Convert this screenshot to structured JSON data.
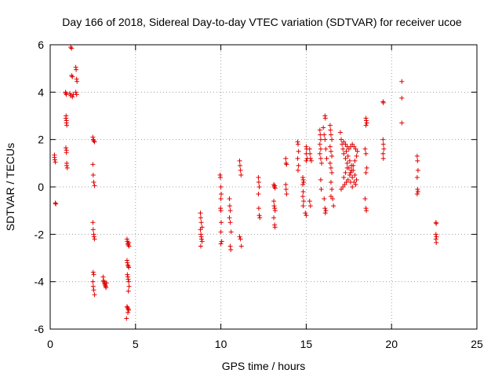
{
  "chart_data": {
    "type": "scatter",
    "title": "Day 166 of 2018, Sidereal Day-to-day VTEC variation (SDTVAR) for receiver ucoe",
    "xlabel": "GPS time / hours",
    "ylabel": "SDTVAR / TECUs",
    "xlim": [
      0,
      25
    ],
    "ylim": [
      -6,
      6
    ],
    "xticks": [
      "0",
      "5",
      "10",
      "15",
      "20",
      "25"
    ],
    "yticks": [
      "-6",
      "-4",
      "-2",
      "0",
      "2",
      "4",
      "6"
    ],
    "grid": true,
    "marker": "+",
    "color": "#e00000",
    "series": [
      {
        "name": "SDTVAR",
        "points": [
          [
            0.25,
            1.35
          ],
          [
            0.25,
            1.25
          ],
          [
            0.27,
            1.15
          ],
          [
            0.3,
            1.05
          ],
          [
            0.3,
            -0.68
          ],
          [
            0.33,
            -0.72
          ],
          [
            0.9,
            4.0
          ],
          [
            0.92,
            3.95
          ],
          [
            0.95,
            3.9
          ],
          [
            0.93,
            3.0
          ],
          [
            0.92,
            2.9
          ],
          [
            0.95,
            2.8
          ],
          [
            0.95,
            2.7
          ],
          [
            0.97,
            2.6
          ],
          [
            0.92,
            1.65
          ],
          [
            0.95,
            1.55
          ],
          [
            0.95,
            1.45
          ],
          [
            0.97,
            1.0
          ],
          [
            0.97,
            0.9
          ],
          [
            1.0,
            0.8
          ],
          [
            1.2,
            5.9
          ],
          [
            1.25,
            5.85
          ],
          [
            1.25,
            4.7
          ],
          [
            1.3,
            4.65
          ],
          [
            1.15,
            3.95
          ],
          [
            1.2,
            3.85
          ],
          [
            1.3,
            3.8
          ],
          [
            1.35,
            3.9
          ],
          [
            1.5,
            5.05
          ],
          [
            1.52,
            4.95
          ],
          [
            1.55,
            4.55
          ],
          [
            1.57,
            4.45
          ],
          [
            1.5,
            4.0
          ],
          [
            1.55,
            3.9
          ],
          [
            2.5,
            2.1
          ],
          [
            2.52,
            2.0
          ],
          [
            2.55,
            1.95
          ],
          [
            2.6,
            1.9
          ],
          [
            2.5,
            0.95
          ],
          [
            2.52,
            0.5
          ],
          [
            2.55,
            0.2
          ],
          [
            2.6,
            0.05
          ],
          [
            2.5,
            -1.5
          ],
          [
            2.52,
            -1.8
          ],
          [
            2.55,
            -2.0
          ],
          [
            2.57,
            -2.1
          ],
          [
            2.6,
            -2.2
          ],
          [
            2.52,
            -3.6
          ],
          [
            2.55,
            -3.7
          ],
          [
            2.5,
            -4.0
          ],
          [
            2.52,
            -4.2
          ],
          [
            2.55,
            -4.35
          ],
          [
            2.6,
            -4.55
          ],
          [
            3.1,
            -3.8
          ],
          [
            3.12,
            -3.95
          ],
          [
            3.15,
            -4.0
          ],
          [
            3.18,
            -4.05
          ],
          [
            3.2,
            -4.1
          ],
          [
            3.22,
            -4.15
          ],
          [
            3.25,
            -4.2
          ],
          [
            3.27,
            -4.25
          ],
          [
            3.3,
            -4.05
          ],
          [
            4.5,
            -2.2
          ],
          [
            4.52,
            -2.3
          ],
          [
            4.55,
            -2.4
          ],
          [
            4.57,
            -2.45
          ],
          [
            4.6,
            -2.35
          ],
          [
            4.62,
            -2.5
          ],
          [
            4.5,
            -3.1
          ],
          [
            4.52,
            -3.2
          ],
          [
            4.55,
            -3.3
          ],
          [
            4.58,
            -3.35
          ],
          [
            4.6,
            -3.4
          ],
          [
            4.52,
            -3.7
          ],
          [
            4.55,
            -3.8
          ],
          [
            4.57,
            -3.9
          ],
          [
            4.6,
            -4.0
          ],
          [
            4.62,
            -4.2
          ],
          [
            4.58,
            -4.4
          ],
          [
            4.5,
            -5.05
          ],
          [
            4.53,
            -5.1
          ],
          [
            4.57,
            -5.15
          ],
          [
            4.6,
            -5.2
          ],
          [
            4.55,
            -5.3
          ],
          [
            4.47,
            -5.55
          ],
          [
            8.8,
            -1.1
          ],
          [
            8.82,
            -1.3
          ],
          [
            8.85,
            -1.5
          ],
          [
            8.8,
            -1.8
          ],
          [
            8.83,
            -2.0
          ],
          [
            8.85,
            -2.1
          ],
          [
            8.87,
            -2.2
          ],
          [
            8.9,
            -2.3
          ],
          [
            8.82,
            -2.5
          ],
          [
            8.9,
            -1.7
          ],
          [
            9.95,
            0.5
          ],
          [
            9.97,
            0.4
          ],
          [
            10.0,
            0.0
          ],
          [
            10.02,
            -0.3
          ],
          [
            10.0,
            -0.5
          ],
          [
            9.98,
            -0.9
          ],
          [
            10.0,
            -1.0
          ],
          [
            10.02,
            -1.5
          ],
          [
            10.0,
            -1.9
          ],
          [
            10.05,
            -2.3
          ],
          [
            10.0,
            -2.4
          ],
          [
            10.5,
            -0.5
          ],
          [
            10.52,
            -0.8
          ],
          [
            10.55,
            -1.0
          ],
          [
            10.5,
            -1.3
          ],
          [
            10.55,
            -1.5
          ],
          [
            10.6,
            -1.9
          ],
          [
            10.55,
            -2.5
          ],
          [
            10.58,
            -2.65
          ],
          [
            11.1,
            1.1
          ],
          [
            11.12,
            0.9
          ],
          [
            11.15,
            0.7
          ],
          [
            11.18,
            0.5
          ],
          [
            11.1,
            -2.1
          ],
          [
            11.15,
            -2.2
          ],
          [
            11.2,
            -2.5
          ],
          [
            12.2,
            0.4
          ],
          [
            12.22,
            0.2
          ],
          [
            12.25,
            0.0
          ],
          [
            12.2,
            -0.3
          ],
          [
            12.22,
            -0.9
          ],
          [
            12.25,
            -1.2
          ],
          [
            12.28,
            -1.3
          ],
          [
            13.1,
            0.1
          ],
          [
            13.12,
            0.0
          ],
          [
            13.15,
            0.05
          ],
          [
            13.18,
            -0.05
          ],
          [
            13.1,
            -0.6
          ],
          [
            13.12,
            -0.8
          ],
          [
            13.15,
            -0.9
          ],
          [
            13.18,
            -1.0
          ],
          [
            13.1,
            -1.3
          ],
          [
            13.15,
            -1.6
          ],
          [
            13.17,
            -1.7
          ],
          [
            13.8,
            1.2
          ],
          [
            13.82,
            1.0
          ],
          [
            13.85,
            0.95
          ],
          [
            13.8,
            0.1
          ],
          [
            13.82,
            -0.1
          ],
          [
            13.85,
            -0.3
          ],
          [
            14.5,
            1.9
          ],
          [
            14.52,
            1.8
          ],
          [
            14.55,
            1.5
          ],
          [
            14.5,
            1.2
          ],
          [
            14.55,
            0.9
          ],
          [
            14.52,
            0.7
          ],
          [
            14.8,
            0.4
          ],
          [
            14.82,
            0.3
          ],
          [
            14.85,
            0.2
          ],
          [
            14.8,
            0.1
          ],
          [
            14.82,
            -0.2
          ],
          [
            14.8,
            -0.4
          ],
          [
            14.85,
            -0.6
          ],
          [
            14.82,
            -0.8
          ],
          [
            15.0,
            1.7
          ],
          [
            15.02,
            1.6
          ],
          [
            15.0,
            1.4
          ],
          [
            15.05,
            1.2
          ],
          [
            15.0,
            1.1
          ],
          [
            14.95,
            -1.1
          ],
          [
            15.0,
            -1.2
          ],
          [
            15.2,
            1.6
          ],
          [
            15.22,
            1.4
          ],
          [
            15.25,
            1.2
          ],
          [
            15.3,
            1.1
          ],
          [
            15.2,
            -0.6
          ],
          [
            15.25,
            -0.8
          ],
          [
            15.8,
            2.4
          ],
          [
            15.82,
            2.2
          ],
          [
            15.85,
            2.0
          ],
          [
            15.8,
            1.8
          ],
          [
            15.85,
            1.6
          ],
          [
            15.8,
            1.4
          ],
          [
            15.85,
            1.2
          ],
          [
            15.9,
            1.0
          ],
          [
            15.85,
            0.3
          ],
          [
            15.88,
            -0.1
          ],
          [
            16.1,
            3.0
          ],
          [
            16.12,
            2.9
          ],
          [
            16.0,
            2.5
          ],
          [
            16.05,
            2.2
          ],
          [
            16.1,
            2.0
          ],
          [
            16.15,
            1.6
          ],
          [
            16.2,
            1.2
          ],
          [
            16.05,
            -0.5
          ],
          [
            16.1,
            -0.9
          ],
          [
            16.12,
            -1.1
          ],
          [
            16.15,
            -1.0
          ],
          [
            16.4,
            2.6
          ],
          [
            16.42,
            2.4
          ],
          [
            16.45,
            2.2
          ],
          [
            16.5,
            2.0
          ],
          [
            16.4,
            1.7
          ],
          [
            16.45,
            1.5
          ],
          [
            16.5,
            1.3
          ],
          [
            16.4,
            1.0
          ],
          [
            16.45,
            0.8
          ],
          [
            16.5,
            0.6
          ],
          [
            16.45,
            0.2
          ],
          [
            16.5,
            -0.1
          ],
          [
            16.55,
            -0.5
          ],
          [
            16.6,
            -0.8
          ],
          [
            16.45,
            -0.4
          ],
          [
            17.0,
            2.3
          ],
          [
            17.05,
            2.0
          ],
          [
            17.1,
            1.8
          ],
          [
            17.15,
            1.6
          ],
          [
            17.2,
            1.4
          ],
          [
            17.3,
            1.2
          ],
          [
            17.4,
            1.0
          ],
          [
            17.5,
            0.8
          ],
          [
            17.6,
            0.6
          ],
          [
            17.7,
            0.4
          ],
          [
            17.8,
            0.2
          ],
          [
            17.05,
            -0.1
          ],
          [
            17.15,
            0.0
          ],
          [
            17.25,
            0.1
          ],
          [
            17.35,
            0.2
          ],
          [
            17.45,
            0.3
          ],
          [
            17.55,
            0.5
          ],
          [
            17.65,
            0.7
          ],
          [
            17.75,
            0.9
          ],
          [
            17.85,
            1.1
          ],
          [
            17.95,
            1.3
          ],
          [
            17.2,
            1.9
          ],
          [
            17.3,
            1.8
          ],
          [
            17.4,
            1.7
          ],
          [
            17.5,
            1.6
          ],
          [
            17.6,
            1.7
          ],
          [
            17.7,
            1.8
          ],
          [
            17.8,
            1.7
          ],
          [
            17.9,
            1.6
          ],
          [
            18.0,
            1.5
          ],
          [
            17.35,
            1.5
          ],
          [
            17.45,
            1.3
          ],
          [
            17.55,
            1.1
          ],
          [
            17.65,
            0.9
          ],
          [
            17.75,
            0.7
          ],
          [
            17.85,
            0.5
          ],
          [
            17.95,
            0.3
          ],
          [
            17.3,
            0.6
          ],
          [
            17.4,
            0.8
          ],
          [
            17.6,
            0.2
          ],
          [
            17.7,
            0.0
          ],
          [
            17.2,
            0.4
          ],
          [
            17.9,
            0.1
          ],
          [
            18.5,
            2.9
          ],
          [
            18.52,
            2.8
          ],
          [
            18.55,
            2.7
          ],
          [
            18.5,
            2.6
          ],
          [
            18.45,
            1.6
          ],
          [
            18.5,
            1.4
          ],
          [
            18.55,
            0.8
          ],
          [
            18.5,
            0.6
          ],
          [
            18.45,
            -0.5
          ],
          [
            18.5,
            -0.9
          ],
          [
            18.52,
            -1.0
          ],
          [
            19.5,
            3.6
          ],
          [
            19.52,
            3.55
          ],
          [
            19.5,
            2.0
          ],
          [
            19.52,
            1.8
          ],
          [
            19.55,
            1.6
          ],
          [
            19.5,
            1.4
          ],
          [
            19.52,
            1.2
          ],
          [
            20.6,
            4.45
          ],
          [
            20.6,
            3.75
          ],
          [
            20.6,
            2.7
          ],
          [
            21.5,
            1.3
          ],
          [
            21.52,
            1.1
          ],
          [
            21.55,
            0.7
          ],
          [
            21.5,
            0.4
          ],
          [
            21.52,
            -0.1
          ],
          [
            21.55,
            -0.2
          ],
          [
            21.5,
            -0.3
          ],
          [
            22.6,
            -1.5
          ],
          [
            22.62,
            -1.55
          ],
          [
            22.6,
            -2.0
          ],
          [
            22.63,
            -2.1
          ],
          [
            22.6,
            -2.2
          ],
          [
            22.62,
            -2.35
          ]
        ]
      }
    ]
  }
}
